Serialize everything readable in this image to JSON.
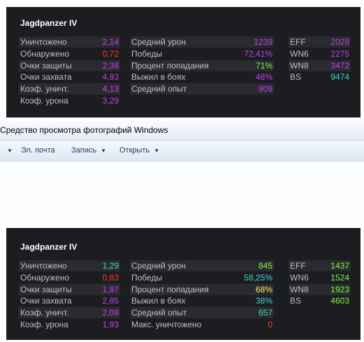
{
  "viewer": {
    "title": "Средство просмотра фотографий Windows",
    "menu": [
      {
        "label": ""
      },
      {
        "label": "Эл. почта"
      },
      {
        "label": "Запись"
      },
      {
        "label": "Открыть"
      }
    ]
  },
  "top": {
    "tank": "Jagdpanzer IV",
    "col1": [
      {
        "label": "Уничтожено",
        "value": "2,14",
        "color": "#c040f0"
      },
      {
        "label": "Обнаружено",
        "value": "0,72",
        "color": "#ff3a2a"
      },
      {
        "label": "Очки защиты",
        "value": "2,38",
        "color": "#c040f0"
      },
      {
        "label": "Очки захвата",
        "value": "4,93",
        "color": "#c040f0"
      },
      {
        "label": "Коэф. уничт.",
        "value": "4,13",
        "color": "#c040f0"
      },
      {
        "label": "Коэф. урона",
        "value": "3,29",
        "color": "#c040f0"
      }
    ],
    "col2": [
      {
        "label": "Средний урон",
        "value": "1239",
        "color": "#c040f0"
      },
      {
        "label": "Победы",
        "value": "72,41%",
        "color": "#c040f0"
      },
      {
        "label": "Процент попадания",
        "value": "71%",
        "color": "#7cfc3a"
      },
      {
        "label": "Выжил в боях",
        "value": "48%",
        "color": "#c040f0"
      },
      {
        "label": "Средний опыт",
        "value": "909",
        "color": "#c040f0"
      }
    ],
    "col3": [
      {
        "label": "EFF",
        "value": "2028",
        "color": "#c040f0"
      },
      {
        "label": "WN6",
        "value": "2275",
        "color": "#c040f0"
      },
      {
        "label": "WN8",
        "value": "3472",
        "color": "#c040f0"
      },
      {
        "label": "BS",
        "value": "9474",
        "color": "#3ed6c8"
      }
    ]
  },
  "bottom": {
    "tank": "Jagdpanzer IV",
    "col1": [
      {
        "label": "Уничтожено",
        "value": "1,29",
        "color": "#3ed6c8"
      },
      {
        "label": "Обнаружено",
        "value": "0,63",
        "color": "#ff3a2a"
      },
      {
        "label": "Очки защиты",
        "value": "1,87",
        "color": "#c040f0"
      },
      {
        "label": "Очки захвата",
        "value": "2,85",
        "color": "#c040f0"
      },
      {
        "label": "Коэф. уничт.",
        "value": "2,08",
        "color": "#c040f0"
      },
      {
        "label": "Коэф. урона",
        "value": "1,93",
        "color": "#c040f0"
      }
    ],
    "col2": [
      {
        "label": "Средний урон",
        "value": "845",
        "color": "#7cfc3a"
      },
      {
        "label": "Победы",
        "value": "58,25%",
        "color": "#3ed6c8"
      },
      {
        "label": "Процент попадания",
        "value": "68%",
        "color": "#f5f05a"
      },
      {
        "label": "Выжил в боях",
        "value": "38%",
        "color": "#3ed6c8"
      },
      {
        "label": "Средний опыт",
        "value": "657",
        "color": "#3ed6c8"
      },
      {
        "label": "Макс. уничтожено",
        "value": "0",
        "color": "#ff3a2a"
      }
    ],
    "col3": [
      {
        "label": "EFF",
        "value": "1437",
        "color": "#7cfc3a"
      },
      {
        "label": "WN6",
        "value": "1524",
        "color": "#7cfc3a"
      },
      {
        "label": "WN8",
        "value": "1923",
        "color": "#7cfc3a"
      },
      {
        "label": "BS",
        "value": "4603",
        "color": "#7cfc3a"
      }
    ]
  }
}
